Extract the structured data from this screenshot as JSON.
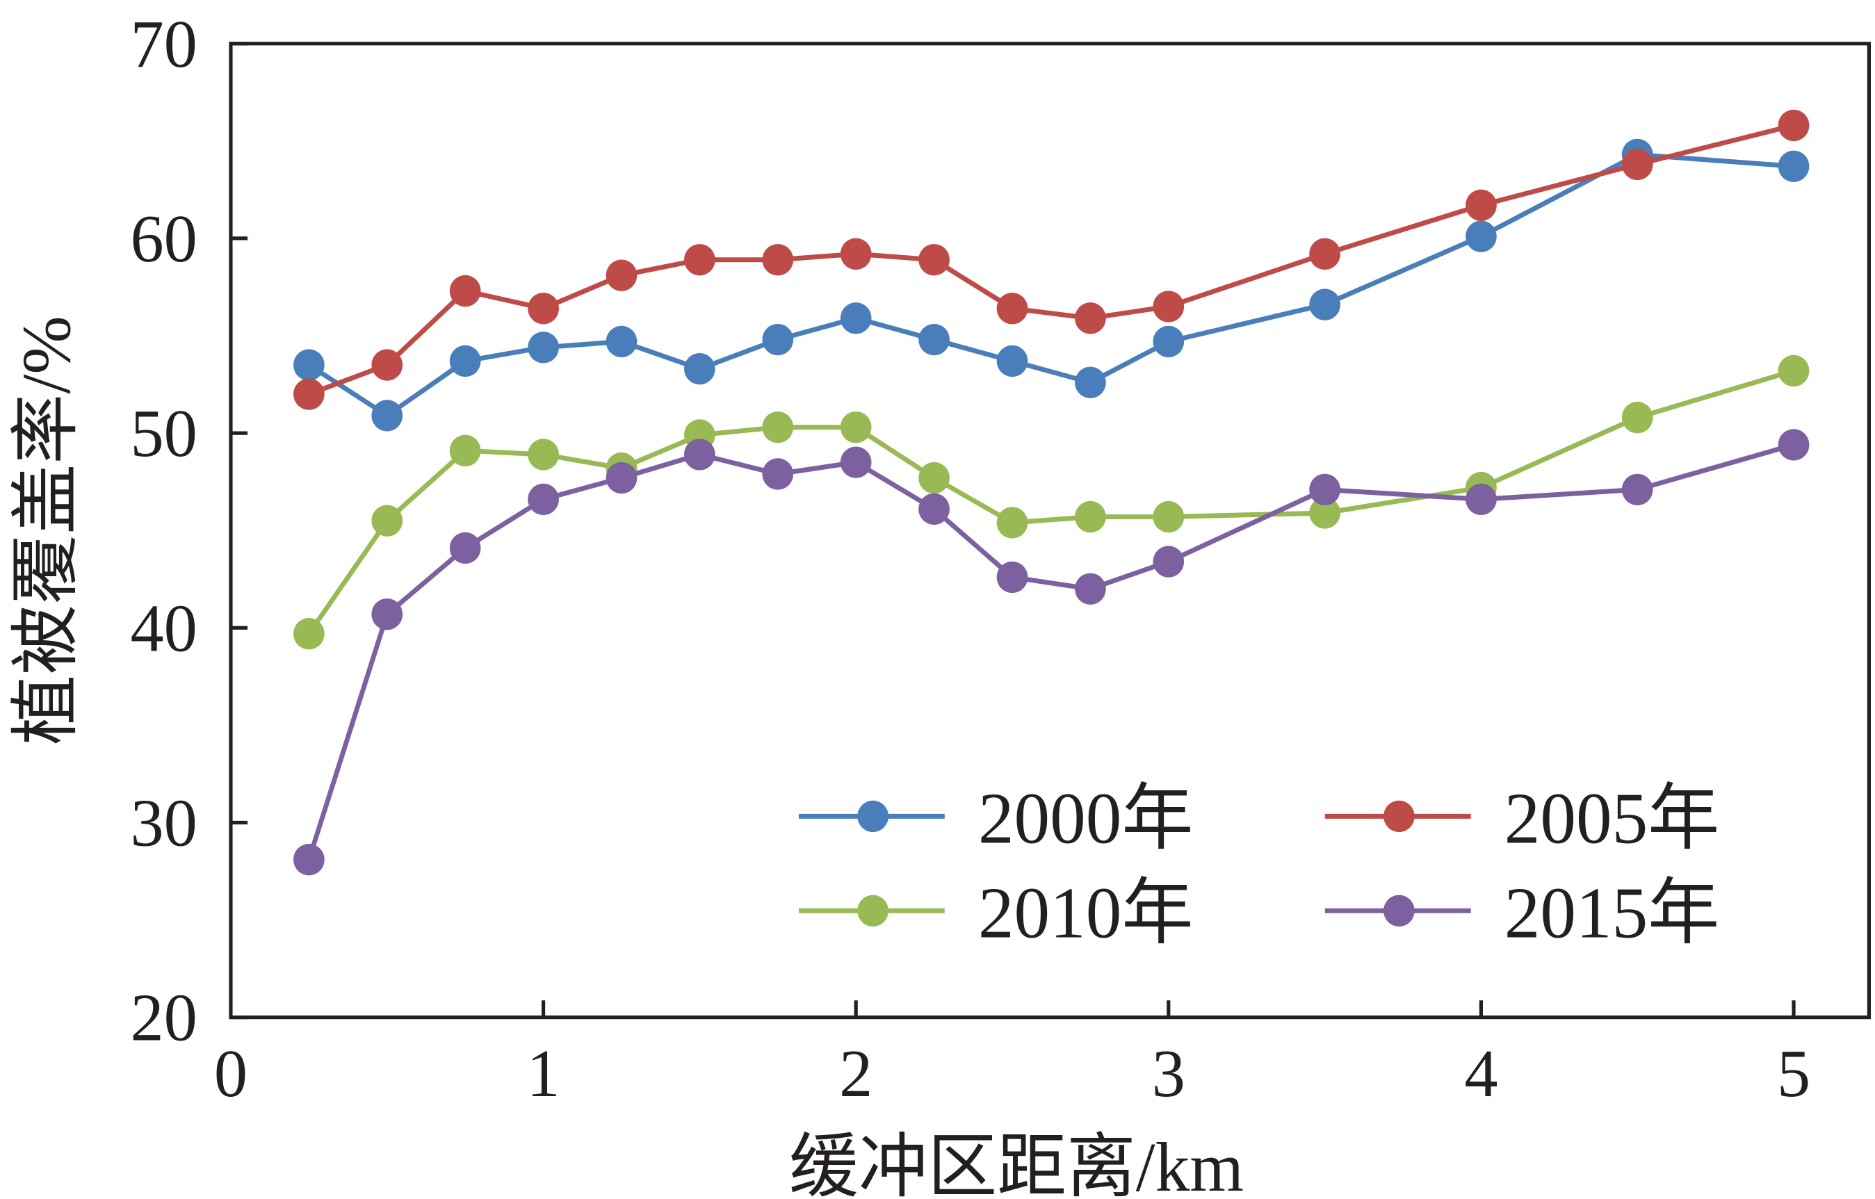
{
  "chart_data": {
    "type": "line",
    "title": "",
    "xlabel": "缓冲区距离/km",
    "ylabel": "植被覆盖率/%",
    "xlim": [
      0,
      5.2
    ],
    "ylim": [
      20,
      70
    ],
    "xticks": [
      0,
      1,
      2,
      3,
      4,
      5
    ],
    "yticks": [
      20,
      30,
      40,
      50,
      60,
      70
    ],
    "grid": false,
    "legend_position": "bottom-right",
    "x": [
      0.25,
      0.5,
      0.75,
      1.0,
      1.25,
      1.5,
      1.75,
      2.0,
      2.25,
      2.5,
      2.75,
      3.0,
      3.5,
      4.0,
      4.5,
      5.0
    ],
    "series": [
      {
        "name": "2000年",
        "color": "#4a7ebb",
        "values": [
          53.5,
          50.9,
          53.7,
          54.4,
          54.7,
          53.3,
          54.8,
          55.9,
          54.8,
          53.7,
          52.6,
          54.7,
          56.6,
          60.1,
          64.3,
          63.7
        ]
      },
      {
        "name": "2005年",
        "color": "#be4b48",
        "values": [
          52.0,
          53.5,
          57.3,
          56.4,
          58.1,
          58.9,
          58.9,
          59.2,
          58.9,
          56.4,
          55.9,
          56.5,
          59.2,
          61.7,
          63.8,
          65.8
        ]
      },
      {
        "name": "2010年",
        "color": "#98b954",
        "values": [
          39.7,
          45.5,
          49.1,
          48.9,
          48.2,
          49.9,
          50.3,
          50.3,
          47.7,
          45.4,
          45.7,
          45.7,
          45.9,
          47.2,
          50.8,
          53.2
        ]
      },
      {
        "name": "2015年",
        "color": "#7d60a0",
        "values": [
          28.1,
          40.7,
          44.1,
          46.6,
          47.7,
          48.9,
          47.9,
          48.5,
          46.1,
          42.6,
          42.0,
          43.4,
          47.1,
          46.6,
          47.1,
          49.4
        ]
      }
    ]
  }
}
